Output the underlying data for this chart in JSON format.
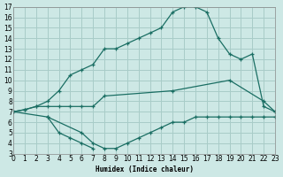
{
  "xlabel": "Humidex (Indice chaleur)",
  "bg_color": "#cde8e5",
  "line_color": "#1a6e63",
  "grid_color": "#a8ccc8",
  "xlim": [
    0,
    23
  ],
  "ylim": [
    3,
    17
  ],
  "xticks": [
    0,
    1,
    2,
    3,
    4,
    5,
    6,
    7,
    8,
    9,
    10,
    11,
    12,
    13,
    14,
    15,
    16,
    17,
    18,
    19,
    20,
    21,
    22,
    23
  ],
  "yticks": [
    3,
    4,
    5,
    6,
    7,
    8,
    9,
    10,
    11,
    12,
    13,
    14,
    15,
    16,
    17
  ],
  "line1_x": [
    0,
    1,
    2,
    3,
    4,
    5,
    6,
    7,
    8,
    9,
    10,
    11,
    12,
    13,
    14,
    15,
    16,
    17,
    18,
    19,
    20,
    21,
    22,
    23
  ],
  "line1_y": [
    7,
    7.2,
    7.5,
    8,
    9,
    10.5,
    11,
    11.5,
    13,
    13,
    13.5,
    14,
    14.5,
    15,
    16.5,
    17,
    17,
    16.5,
    14,
    12.5,
    12,
    12.5,
    7.5,
    7
  ],
  "line2_x": [
    0,
    1,
    2,
    3,
    4,
    5,
    6,
    7,
    8,
    14,
    19,
    22,
    23
  ],
  "line2_y": [
    7,
    7.2,
    7.5,
    7.5,
    7.5,
    7.5,
    7.5,
    7.5,
    8.5,
    9,
    10,
    8,
    7
  ],
  "line3_x": [
    0,
    3,
    6,
    7,
    8,
    9,
    10,
    11,
    12,
    13,
    14,
    15,
    16,
    17,
    18,
    19,
    20,
    21,
    22,
    23
  ],
  "line3_y": [
    7,
    6.5,
    5,
    4,
    3.5,
    3.5,
    4,
    4.5,
    5,
    5.5,
    6,
    6,
    6.5,
    6.5,
    6.5,
    6.5,
    6.5,
    6.5,
    6.5,
    6.5
  ],
  "line4_x": [
    3,
    4,
    5,
    6,
    7
  ],
  "line4_y": [
    6.5,
    5,
    4.5,
    4,
    3.5
  ]
}
